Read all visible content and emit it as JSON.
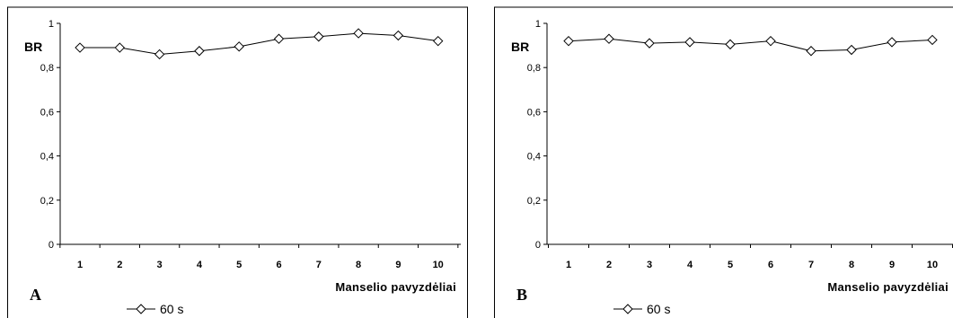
{
  "chart_data": [
    {
      "type": "line",
      "panel_label": "A",
      "ylabel": "BR",
      "xlabel": "Manselio pavyzdėliai",
      "categories": [
        "1",
        "2",
        "3",
        "4",
        "5",
        "6",
        "7",
        "8",
        "9",
        "10"
      ],
      "yticks": [
        "0",
        "0,2",
        "0,4",
        "0,6",
        "0,8",
        "1"
      ],
      "ylim": [
        0,
        1
      ],
      "series": [
        {
          "name": "60 s",
          "values": [
            0.89,
            0.89,
            0.86,
            0.875,
            0.895,
            0.93,
            0.94,
            0.955,
            0.945,
            0.92
          ]
        }
      ],
      "legend": "bottom"
    },
    {
      "type": "line",
      "panel_label": "B",
      "ylabel": "BR",
      "xlabel": "Manselio pavyzdėliai",
      "categories": [
        "1",
        "2",
        "3",
        "4",
        "5",
        "6",
        "7",
        "8",
        "9",
        "10"
      ],
      "yticks": [
        "0",
        "0,2",
        "0,4",
        "0,6",
        "0,8",
        "1"
      ],
      "ylim": [
        0,
        1
      ],
      "series": [
        {
          "name": "60 s",
          "values": [
            0.92,
            0.93,
            0.91,
            0.915,
            0.905,
            0.92,
            0.875,
            0.88,
            0.915,
            0.925
          ]
        }
      ],
      "legend": "bottom"
    }
  ]
}
